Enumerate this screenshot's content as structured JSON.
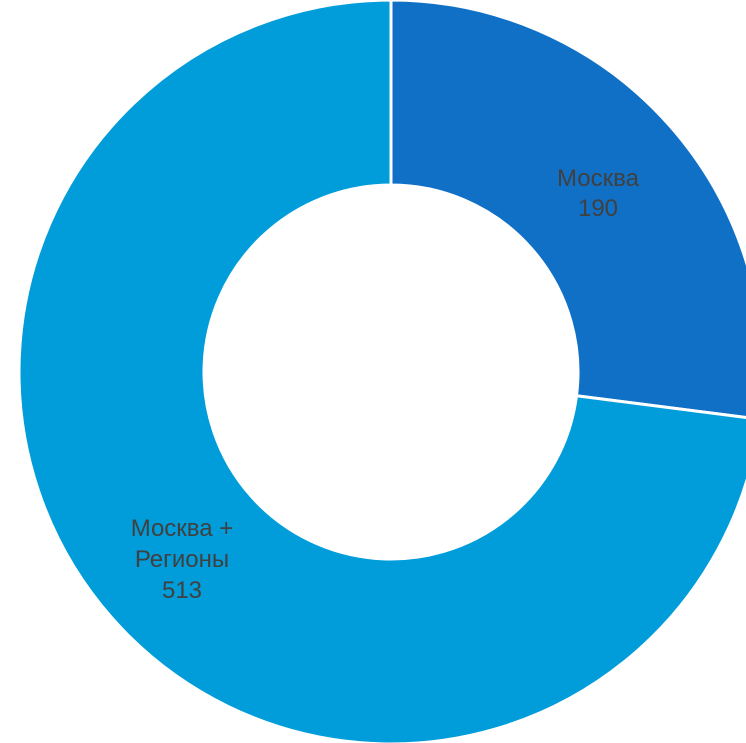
{
  "chart_data": {
    "type": "pie",
    "style": "donut",
    "categories": [
      "Москва",
      "Москва + Регионы"
    ],
    "values": [
      190,
      513
    ],
    "colors": [
      "#1070C6",
      "#009DDA"
    ],
    "labels": [
      {
        "lines": [
          "Москва"
        ],
        "value": "190"
      },
      {
        "lines": [
          "Москва +",
          "Регионы"
        ],
        "value": "513"
      }
    ],
    "legend": "none"
  }
}
